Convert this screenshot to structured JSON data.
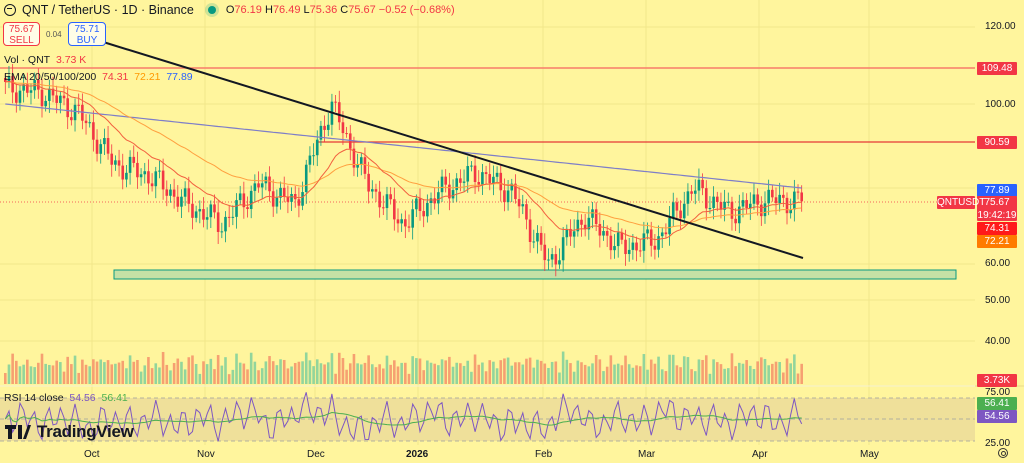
{
  "header": {
    "symbol": "QNT / TetherUS · 1D · Binance",
    "open_label": "O",
    "open": "76.19",
    "high_label": "H",
    "high": "76.49",
    "low_label": "L",
    "low": "75.36",
    "close_label": "C",
    "close": "75.67",
    "change": "−0.52 (−0.68%)"
  },
  "trade": {
    "sell_price": "75.67",
    "sell_label": "SELL",
    "spread": "0.04",
    "buy_price": "75.71",
    "buy_label": "BUY"
  },
  "indicators": {
    "vol_label": "Vol · QNT",
    "vol_value": "3.73 K",
    "ema_label": "EMA 20/50/100/200",
    "ema20": "74.31",
    "ema50": "72.21",
    "ema100": "77.89",
    "rsi_label": "RSI 14 close",
    "rsi_value": "54.56",
    "rsi_ma": "56.41"
  },
  "price_axis": {
    "ticks": [
      "120.00",
      "100.00",
      "60.00",
      "50.00",
      "40.00"
    ],
    "rsi_ticks": [
      "75.00",
      "25.00"
    ],
    "tags": {
      "resistance_high": "109.48",
      "resistance_mid": "90.59",
      "ema100": "77.89",
      "last_price": "75.67",
      "countdown": "19:42:19",
      "ema20": "74.31",
      "ema50": "72.21",
      "volume": "3.73K",
      "rsi_ma": "56.41",
      "rsi": "54.56"
    },
    "symbol_tag": "QNTUSDT"
  },
  "time_axis": [
    "Oct",
    "Nov",
    "Dec",
    "2026",
    "Feb",
    "Mar",
    "Apr",
    "May"
  ],
  "branding": {
    "name": "TradingView"
  },
  "colors": {
    "background": "#fff59d",
    "up": "#089981",
    "down": "#f23645",
    "ema20": "#f23645",
    "ema50": "#ff9800",
    "ema100": "#2962ff",
    "rsi": "#7e57c2",
    "rsi_ma": "#4caf50",
    "support_zone": "#c5e1a5",
    "trendline": "#131722"
  },
  "chart_data": {
    "type": "candlestick",
    "title": "QNT / TetherUS · 1D · Binance",
    "x_labels": [
      "Oct",
      "Nov",
      "Dec",
      "2026",
      "Feb",
      "Mar",
      "Apr",
      "May"
    ],
    "y_ticks": [
      40,
      50,
      60,
      100,
      120
    ],
    "ylim": [
      36,
      124
    ],
    "last": {
      "open": 76.19,
      "high": 76.49,
      "low": 75.36,
      "close": 75.67,
      "change": -0.52,
      "change_pct": -0.68
    },
    "horizontal_levels": [
      109.48,
      90.59
    ],
    "support_zone": [
      57.5,
      60.0
    ],
    "trendline": {
      "from": {
        "date": "Sep 12",
        "price": 122
      },
      "to": {
        "date": "Apr 16",
        "price": 61.5
      }
    },
    "ema": {
      "ema20": 74.31,
      "ema50": 72.21,
      "ema100": 77.89
    },
    "volume_last": "3.73K",
    "rsi": {
      "period": 14,
      "value": 54.56,
      "ma": 56.41,
      "bands": [
        30,
        50,
        70
      ]
    },
    "close_series_approx": [
      {
        "period": "late Sep",
        "close": 104
      },
      {
        "period": "Oct 1",
        "close": 103
      },
      {
        "period": "Oct 10",
        "close": 98
      },
      {
        "period": "Oct 11",
        "close": 85
      },
      {
        "period": "mid Oct",
        "close": 82
      },
      {
        "period": "late Oct",
        "close": 75
      },
      {
        "period": "Nov 5",
        "close": 70
      },
      {
        "period": "mid Nov",
        "close": 80
      },
      {
        "period": "late Nov",
        "close": 75
      },
      {
        "period": "Dec 1",
        "close": 100
      },
      {
        "period": "mid Dec",
        "close": 80
      },
      {
        "period": "late Dec",
        "close": 70
      },
      {
        "period": "Jan 5",
        "close": 78
      },
      {
        "period": "mid Jan",
        "close": 83
      },
      {
        "period": "late Jan",
        "close": 78
      },
      {
        "period": "Feb 5",
        "close": 60
      },
      {
        "period": "mid Feb",
        "close": 72
      },
      {
        "period": "Mar 1",
        "close": 64
      },
      {
        "period": "Mar 10",
        "close": 66
      },
      {
        "period": "Mar 20",
        "close": 79
      },
      {
        "period": "Apr 1",
        "close": 73
      },
      {
        "period": "Apr 10",
        "close": 76
      },
      {
        "period": "Apr 15",
        "close": 75.67
      }
    ]
  }
}
